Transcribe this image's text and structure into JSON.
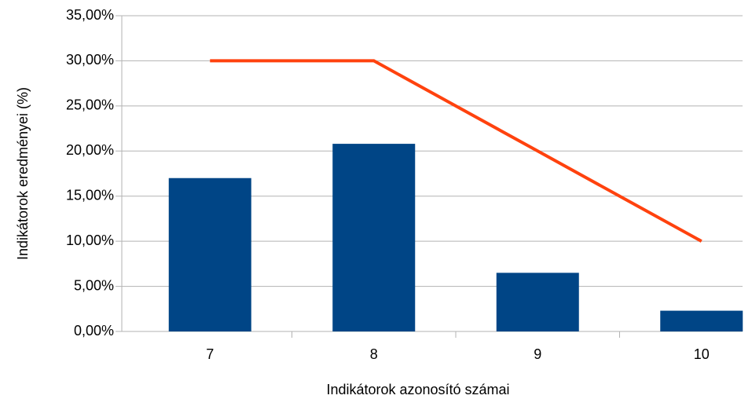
{
  "chart_data": {
    "type": "bar",
    "x_label": "Indikátorok azonosító számai",
    "y_label": "Indikátorok eredményei (%)",
    "categories": [
      "7",
      "8",
      "9",
      "10"
    ],
    "series": [
      {
        "type": "bar",
        "color": "#004586",
        "values": [
          17.0,
          20.8,
          6.5,
          2.3
        ]
      },
      {
        "type": "line",
        "color": "#ff420e",
        "values": [
          30,
          30,
          20,
          10
        ]
      }
    ],
    "ylim": [
      0,
      35
    ],
    "yticks": [
      {
        "value": 0,
        "label": "0,00%"
      },
      {
        "value": 5,
        "label": "5,00%"
      },
      {
        "value": 10,
        "label": "10,00%"
      },
      {
        "value": 15,
        "label": "15,00%"
      },
      {
        "value": 20,
        "label": "20,00%"
      },
      {
        "value": 25,
        "label": "25,00%"
      },
      {
        "value": 30,
        "label": "30,00%"
      },
      {
        "value": 35,
        "label": "35,00%"
      }
    ],
    "grid": true
  }
}
